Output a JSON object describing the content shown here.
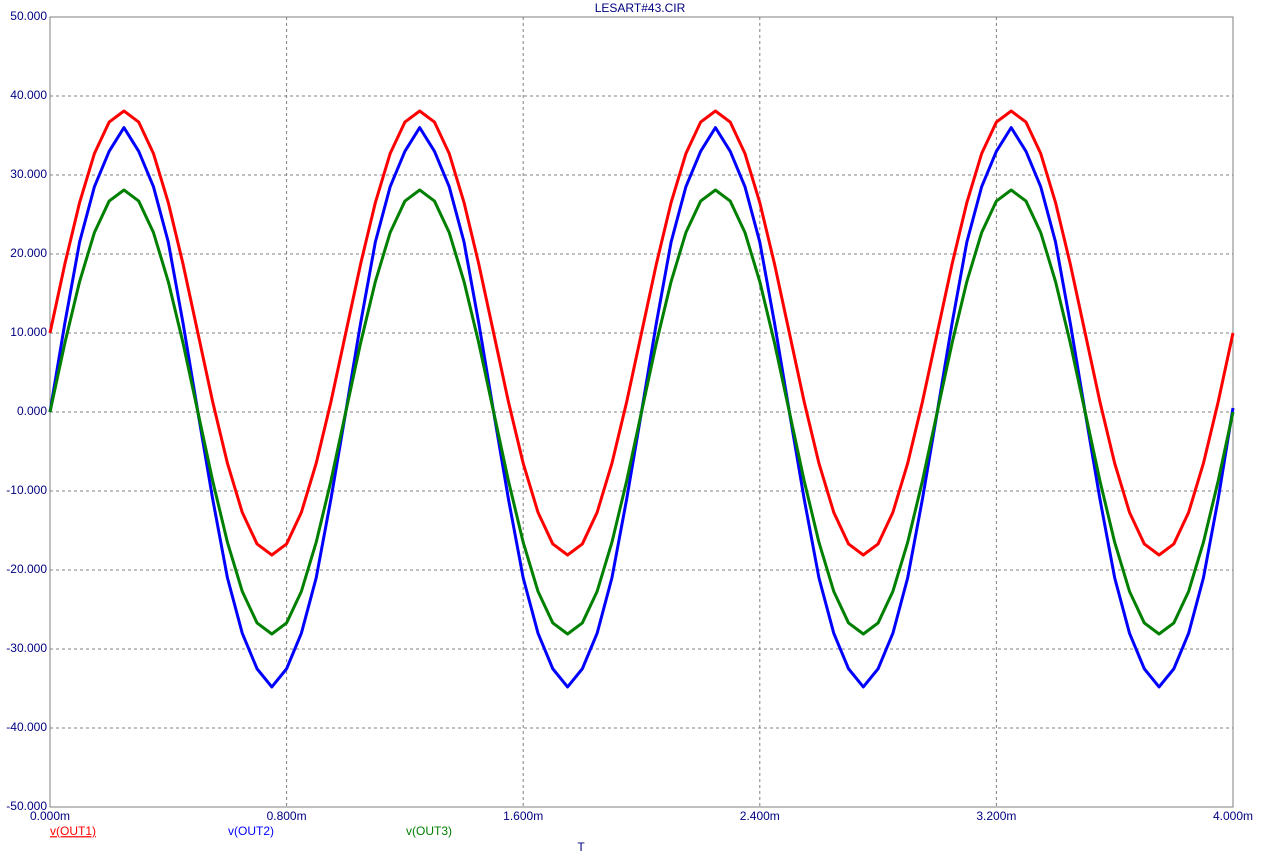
{
  "chart_data": {
    "type": "line",
    "title": "LESART#43.CIR",
    "x_label": "T",
    "x": [
      0,
      0.05,
      0.1,
      0.15,
      0.2,
      0.25,
      0.3,
      0.35,
      0.4,
      0.45,
      0.5,
      0.55,
      0.6,
      0.65,
      0.7,
      0.75,
      0.8,
      0.85,
      0.9,
      0.95,
      1,
      1.05,
      1.1,
      1.15,
      1.2,
      1.25,
      1.3,
      1.35,
      1.4,
      1.45,
      1.5,
      1.55,
      1.6,
      1.65,
      1.7,
      1.75,
      1.8,
      1.85,
      1.9,
      1.95,
      2,
      2.05,
      2.1,
      2.15,
      2.2,
      2.25,
      2.3,
      2.35,
      2.4,
      2.45,
      2.5,
      2.55,
      2.6,
      2.65,
      2.7,
      2.75,
      2.8,
      2.85,
      2.9,
      2.95,
      3,
      3.05,
      3.1,
      3.15,
      3.2,
      3.25,
      3.3,
      3.35,
      3.4,
      3.45,
      3.5,
      3.55,
      3.6,
      3.65,
      3.7,
      3.75,
      3.8,
      3.85,
      3.9,
      3.95,
      4
    ],
    "series": [
      {
        "name": "v(OUT1)",
        "color": "#ff0000",
        "values": [
          10,
          18.7,
          26.5,
          32.7,
          36.7,
          38.1,
          36.7,
          32.7,
          26.5,
          18.7,
          10,
          1.3,
          -6.5,
          -12.7,
          -16.7,
          -18.1,
          -16.7,
          -12.7,
          -6.5,
          1.3,
          10,
          18.7,
          26.5,
          32.7,
          36.7,
          38.1,
          36.7,
          32.7,
          26.5,
          18.7,
          10,
          1.3,
          -6.5,
          -12.7,
          -16.7,
          -18.1,
          -16.7,
          -12.7,
          -6.5,
          1.3,
          10,
          18.7,
          26.5,
          32.7,
          36.7,
          38.1,
          36.7,
          32.7,
          26.5,
          18.7,
          10,
          1.3,
          -6.5,
          -12.7,
          -16.7,
          -18.1,
          -16.7,
          -12.7,
          -6.5,
          1.3,
          10,
          18.7,
          26.5,
          32.7,
          36.7,
          38.1,
          36.7,
          32.7,
          26.5,
          18.7,
          10,
          1.3,
          -6.5,
          -12.7,
          -16.7,
          -18.1,
          -16.7,
          -12.7,
          -6.5,
          1.3,
          10
        ]
      },
      {
        "name": "v(OUT2)",
        "color": "#0000ff",
        "values": [
          0,
          11.2,
          21.5,
          28.5,
          33,
          36,
          33,
          28.5,
          21.5,
          11.2,
          0,
          -11,
          -21,
          -28,
          -32.5,
          -34.8,
          -32.5,
          -28,
          -21,
          -11,
          0,
          11.2,
          21.5,
          28.5,
          33,
          36,
          33,
          28.5,
          21.5,
          11.2,
          0,
          -11,
          -21,
          -28,
          -32.5,
          -34.8,
          -32.5,
          -28,
          -21,
          -11,
          0,
          11.2,
          21.5,
          28.5,
          33,
          36,
          33,
          28.5,
          21.5,
          11.2,
          0,
          -11,
          -21,
          -28,
          -32.5,
          -34.8,
          -32.5,
          -28,
          -21,
          -11,
          0,
          11.2,
          21.5,
          28.5,
          33,
          36,
          33,
          28.5,
          21.5,
          11.2,
          0,
          -11,
          -21,
          -28,
          -32.5,
          -34.8,
          -32.5,
          -28,
          -21,
          -11,
          0.5
        ]
      },
      {
        "name": "v(OUT3)",
        "color": "#008000",
        "values": [
          0,
          8.7,
          16.5,
          22.7,
          26.7,
          28.1,
          26.7,
          22.7,
          16.5,
          8.7,
          0,
          -8.7,
          -16.5,
          -22.7,
          -26.7,
          -28.1,
          -26.7,
          -22.7,
          -16.5,
          -8.7,
          0,
          8.7,
          16.5,
          22.7,
          26.7,
          28.1,
          26.7,
          22.7,
          16.5,
          8.7,
          0,
          -8.7,
          -16.5,
          -22.7,
          -26.7,
          -28.1,
          -26.7,
          -22.7,
          -16.5,
          -8.7,
          0,
          8.7,
          16.5,
          22.7,
          26.7,
          28.1,
          26.7,
          22.7,
          16.5,
          8.7,
          0,
          -8.7,
          -16.5,
          -22.7,
          -26.7,
          -28.1,
          -26.7,
          -22.7,
          -16.5,
          -8.7,
          0,
          8.7,
          16.5,
          22.7,
          26.7,
          28.1,
          26.7,
          22.7,
          16.5,
          8.7,
          0,
          -8.7,
          -16.5,
          -22.7,
          -26.7,
          -28.1,
          -26.7,
          -22.7,
          -16.5,
          -8.7,
          0
        ]
      }
    ],
    "xlim": [
      0,
      4
    ],
    "xticks": [
      {
        "value": 0,
        "label": "0.000m"
      },
      {
        "value": 0.8,
        "label": "0.800m"
      },
      {
        "value": 1.6,
        "label": "1.600m"
      },
      {
        "value": 2.4,
        "label": "2.400m"
      },
      {
        "value": 3.2,
        "label": "3.200m"
      },
      {
        "value": 4,
        "label": "4.000m"
      }
    ],
    "ylim": [
      -50,
      50
    ],
    "yticks": [
      {
        "value": -50,
        "label": "-50.000"
      },
      {
        "value": -40,
        "label": "-40.000"
      },
      {
        "value": -30,
        "label": "-30.000"
      },
      {
        "value": -20,
        "label": "-20.000"
      },
      {
        "value": -10,
        "label": "-10.000"
      },
      {
        "value": 0,
        "label": "0.000"
      },
      {
        "value": 10,
        "label": "10.000"
      },
      {
        "value": 20,
        "label": "20.000"
      },
      {
        "value": 30,
        "label": "30.000"
      },
      {
        "value": 40,
        "label": "40.000"
      },
      {
        "value": 50,
        "label": "50.000"
      }
    ],
    "grid": true
  }
}
